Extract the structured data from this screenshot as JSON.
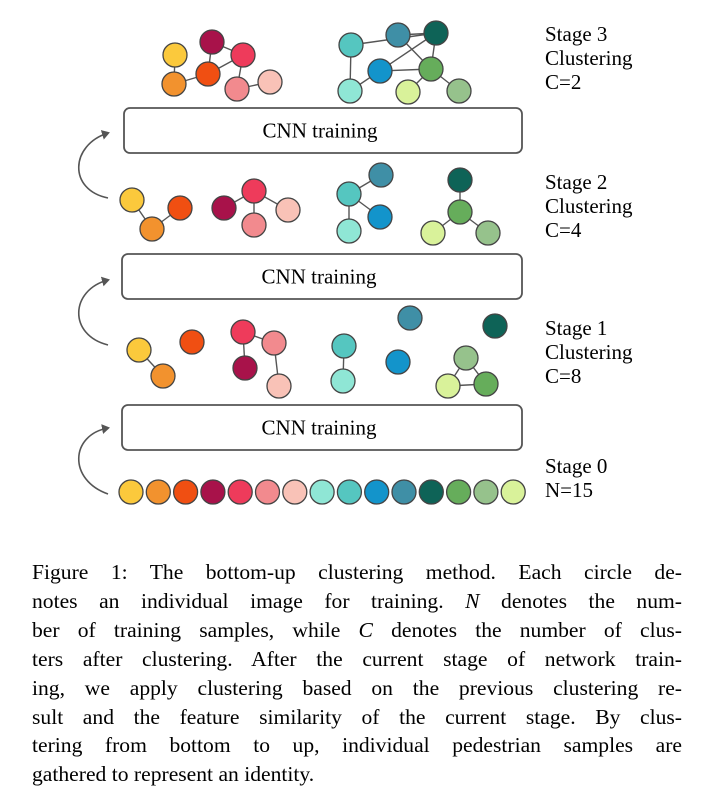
{
  "diagram": {
    "box_label": "CNN training",
    "stages": [
      {
        "title": "Stage 3",
        "sub": "Clustering",
        "count": "C=2"
      },
      {
        "title": "Stage 2",
        "sub": "Clustering",
        "count": "C=4"
      },
      {
        "title": "Stage 1",
        "sub": "Clustering",
        "count": "C=8"
      },
      {
        "title": "Stage 0",
        "sub": "",
        "count": "N=15"
      }
    ],
    "sample_colors": [
      "#fbc93c",
      "#f2922e",
      "#f04f12",
      "#a8124a",
      "#ee3b5b",
      "#f28a8e",
      "#f9c2b7",
      "#8fe6d5",
      "#55c6c0",
      "#1394cb",
      "#3f8fa6",
      "#0e6357",
      "#66ad5b",
      "#96c28c",
      "#d9f29a"
    ]
  },
  "caption": {
    "lines": [
      "Figure 1: The bottom-up clustering method. Each circle de-",
      "notes an individual image for training. |N| denotes the num-",
      "ber of training samples, while |C| denotes the number of clus-",
      "ters after clustering. After the current stage of network train-",
      "ing, we apply clustering based on the previous clustering re-",
      "sult and the feature similarity of the current stage. By clus-",
      "tering from bottom to up, individual pedestrian samples are",
      "gathered to represent an identity."
    ]
  }
}
